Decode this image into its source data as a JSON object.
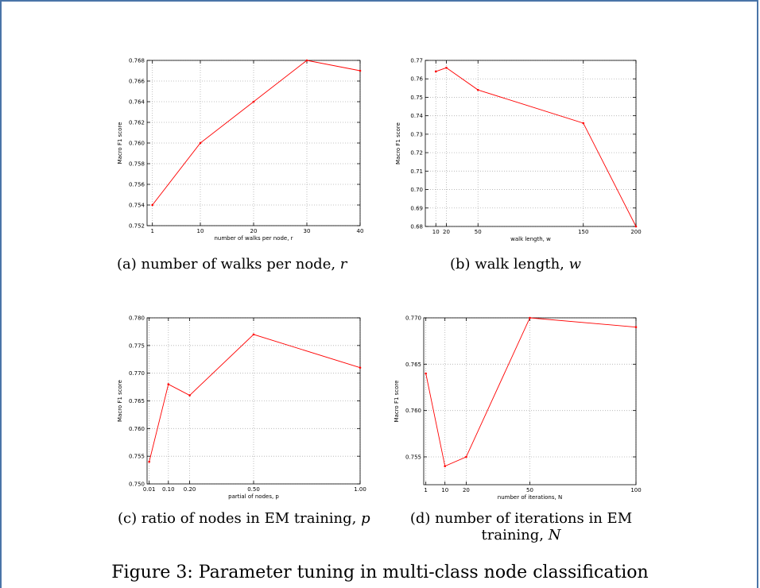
{
  "figure_caption": "Figure 3: Parameter tuning in multi-class node classification",
  "captions": [
    {
      "prefix": "(a) number of walks per node, ",
      "var": "r",
      "suffix": ""
    },
    {
      "prefix": "(b) walk length, ",
      "var": "w",
      "suffix": ""
    },
    {
      "prefix": "(c) ratio of nodes in EM training, ",
      "var": "p",
      "suffix": ""
    },
    {
      "line1": "(d)  number  of  iterations  in  EM",
      "line2_prefix": "training, ",
      "line2_var": "N"
    }
  ],
  "colors": {
    "line": "#ff0000",
    "grid": "#b0b0b0",
    "axis": "#000000"
  },
  "chart_data": [
    {
      "type": "line",
      "x": [
        1,
        10,
        20,
        30,
        40
      ],
      "series": [
        {
          "values": [
            0.754,
            0.76,
            0.764,
            0.768,
            0.767
          ]
        }
      ],
      "xticks": [
        1,
        10,
        20,
        30,
        40
      ],
      "xtick_labels": [
        "1",
        "10",
        "20",
        "30",
        "40"
      ],
      "yticks": [
        0.752,
        0.754,
        0.756,
        0.758,
        0.76,
        0.762,
        0.764,
        0.766,
        0.768
      ],
      "ytick_labels": [
        "0.752",
        "0.754",
        "0.756",
        "0.758",
        "0.760",
        "0.762",
        "0.764",
        "0.766",
        "0.768"
      ],
      "xlim": [
        0,
        40
      ],
      "ylim": [
        0.752,
        0.768
      ],
      "xlabel": "number of walks per node, r",
      "ylabel": "Macro F1 score",
      "grid": true
    },
    {
      "type": "line",
      "x": [
        10,
        20,
        50,
        150,
        200
      ],
      "series": [
        {
          "values": [
            0.764,
            0.766,
            0.754,
            0.736,
            0.68
          ]
        }
      ],
      "xticks": [
        10,
        20,
        50,
        150,
        200
      ],
      "xtick_labels": [
        "10",
        "20",
        "50",
        "150",
        "200"
      ],
      "yticks": [
        0.68,
        0.69,
        0.7,
        0.71,
        0.72,
        0.73,
        0.74,
        0.75,
        0.76,
        0.77
      ],
      "ytick_labels": [
        "0.68",
        "0.69",
        "0.70",
        "0.71",
        "0.72",
        "0.73",
        "0.74",
        "0.75",
        "0.76",
        "0.77"
      ],
      "xlim": [
        0,
        200
      ],
      "ylim": [
        0.68,
        0.77
      ],
      "xlabel": "walk length, w",
      "ylabel": "Macro F1 score",
      "grid": true
    },
    {
      "type": "line",
      "x": [
        0.01,
        0.1,
        0.2,
        0.5,
        1.0
      ],
      "series": [
        {
          "values": [
            0.754,
            0.768,
            0.766,
            0.777,
            0.771
          ]
        }
      ],
      "xticks": [
        0.01,
        0.1,
        0.2,
        0.5,
        1.0
      ],
      "xtick_labels": [
        "0.01",
        "0.10",
        "0.20",
        "0.50",
        "1.00"
      ],
      "yticks": [
        0.75,
        0.755,
        0.76,
        0.765,
        0.77,
        0.775,
        0.78
      ],
      "ytick_labels": [
        "0.750",
        "0.755",
        "0.760",
        "0.765",
        "0.770",
        "0.775",
        "0.780"
      ],
      "xlim": [
        0,
        1.0
      ],
      "ylim": [
        0.75,
        0.78
      ],
      "xlabel": "partial of nodes, p",
      "ylabel": "Macro F1 score",
      "grid": true
    },
    {
      "type": "line",
      "x": [
        1,
        10,
        20,
        50,
        100
      ],
      "series": [
        {
          "values": [
            0.764,
            0.754,
            0.755,
            0.77,
            0.769
          ]
        }
      ],
      "xticks": [
        1,
        10,
        20,
        50,
        100
      ],
      "xtick_labels": [
        "1",
        "10",
        "20",
        "50",
        "100"
      ],
      "yticks": [
        0.755,
        0.76,
        0.765,
        0.77
      ],
      "ytick_labels": [
        "0.755",
        "0.760",
        "0.765",
        "0.770"
      ],
      "xlim": [
        0,
        100
      ],
      "ylim": [
        0.752,
        0.77
      ],
      "xlabel": "number of iterations, N",
      "ylabel": "Macro F1 score",
      "grid": true
    }
  ]
}
